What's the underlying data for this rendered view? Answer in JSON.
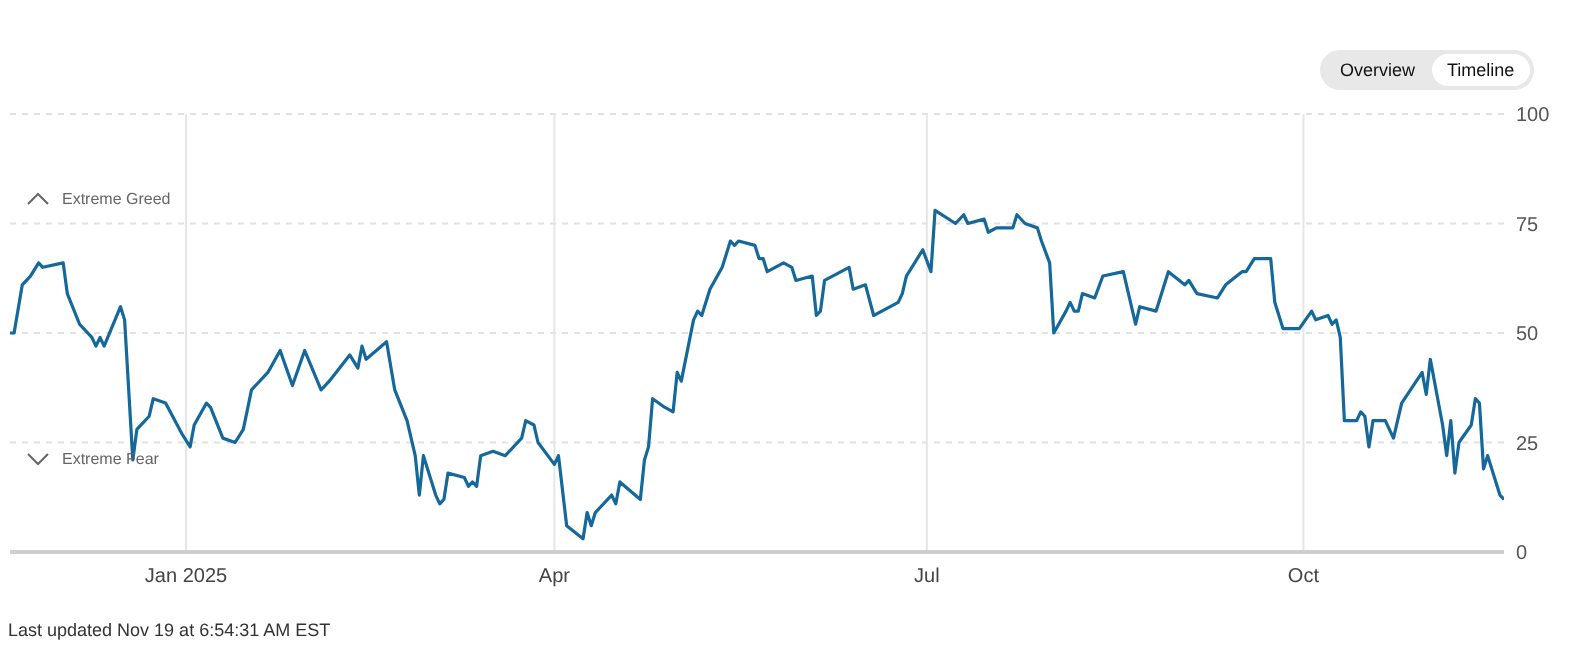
{
  "chart_data": {
    "type": "line",
    "x": [
      "2024-11-19",
      "2024-11-20",
      "2024-11-22",
      "2024-11-24",
      "2024-11-26",
      "2024-11-27",
      "2024-12-02",
      "2024-12-03",
      "2024-12-06",
      "2024-12-09",
      "2024-12-10",
      "2024-12-11",
      "2024-12-12",
      "2024-12-16",
      "2024-12-17",
      "2024-12-19",
      "2024-12-20",
      "2024-12-23",
      "2024-12-24",
      "2024-12-27",
      "2024-12-31",
      "2025-01-02",
      "2025-01-03",
      "2025-01-06",
      "2025-01-07",
      "2025-01-10",
      "2025-01-13",
      "2025-01-15",
      "2025-01-17",
      "2025-01-21",
      "2025-01-24",
      "2025-01-27",
      "2025-01-30",
      "2025-02-03",
      "2025-02-05",
      "2025-02-10",
      "2025-02-12",
      "2025-02-13",
      "2025-02-14",
      "2025-02-19",
      "2025-02-21",
      "2025-02-24",
      "2025-02-26",
      "2025-02-27",
      "2025-02-28",
      "2025-03-03",
      "2025-03-04",
      "2025-03-05",
      "2025-03-06",
      "2025-03-10",
      "2025-03-11",
      "2025-03-12",
      "2025-03-13",
      "2025-03-14",
      "2025-03-17",
      "2025-03-20",
      "2025-03-24",
      "2025-03-25",
      "2025-03-27",
      "2025-03-28",
      "2025-04-01",
      "2025-04-02",
      "2025-04-04",
      "2025-04-08",
      "2025-04-09",
      "2025-04-10",
      "2025-04-11",
      "2025-04-15",
      "2025-04-16",
      "2025-04-17",
      "2025-04-22",
      "2025-04-23",
      "2025-04-24",
      "2025-04-25",
      "2025-04-28",
      "2025-04-30",
      "2025-05-01",
      "2025-05-02",
      "2025-05-05",
      "2025-05-06",
      "2025-05-07",
      "2025-05-09",
      "2025-05-12",
      "2025-05-14",
      "2025-05-15",
      "2025-05-16",
      "2025-05-20",
      "2025-05-21",
      "2025-05-22",
      "2025-05-23",
      "2025-05-27",
      "2025-05-29",
      "2025-05-30",
      "2025-06-03",
      "2025-06-04",
      "2025-06-05",
      "2025-06-06",
      "2025-06-12",
      "2025-06-13",
      "2025-06-16",
      "2025-06-18",
      "2025-06-20",
      "2025-06-24",
      "2025-06-25",
      "2025-06-26",
      "2025-06-30",
      "2025-07-02",
      "2025-07-03",
      "2025-07-08",
      "2025-07-10",
      "2025-07-11",
      "2025-07-15",
      "2025-07-16",
      "2025-07-18",
      "2025-07-22",
      "2025-07-23",
      "2025-07-25",
      "2025-07-28",
      "2025-07-29",
      "2025-07-31",
      "2025-08-01",
      "2025-08-04",
      "2025-08-05",
      "2025-08-06",
      "2025-08-07",
      "2025-08-08",
      "2025-08-11",
      "2025-08-13",
      "2025-08-18",
      "2025-08-21",
      "2025-08-22",
      "2025-08-26",
      "2025-08-29",
      "2025-09-02",
      "2025-09-03",
      "2025-09-05",
      "2025-09-10",
      "2025-09-12",
      "2025-09-16",
      "2025-09-17",
      "2025-09-19",
      "2025-09-23",
      "2025-09-24",
      "2025-09-26",
      "2025-09-30",
      "2025-10-03",
      "2025-10-04",
      "2025-10-07",
      "2025-10-08",
      "2025-10-09",
      "2025-10-10",
      "2025-10-11",
      "2025-10-14",
      "2025-10-15",
      "2025-10-16",
      "2025-10-17",
      "2025-10-18",
      "2025-10-21",
      "2025-10-23",
      "2025-10-25",
      "2025-10-30",
      "2025-10-31",
      "2025-11-01",
      "2025-11-04",
      "2025-11-05",
      "2025-11-06",
      "2025-11-07",
      "2025-11-08",
      "2025-11-11",
      "2025-11-12",
      "2025-11-13",
      "2025-11-14",
      "2025-11-15",
      "2025-11-18",
      "2025-11-19"
    ],
    "series": [
      {
        "color": "#15689a",
        "values": [
          50,
          50,
          61,
          63,
          66,
          65,
          66,
          59,
          52,
          49,
          47,
          49,
          47,
          56,
          53,
          21,
          28,
          31,
          35,
          34,
          27,
          24,
          29,
          34,
          33,
          26,
          25,
          28,
          37,
          41,
          46,
          38,
          46,
          37,
          39,
          45,
          42,
          47,
          44,
          48,
          37,
          30,
          22,
          13,
          22,
          13,
          11,
          12,
          18,
          17,
          15,
          16,
          15,
          22,
          23,
          22,
          26,
          30,
          29,
          25,
          20,
          22,
          6,
          3,
          9,
          6,
          9,
          13,
          11,
          16,
          12,
          21,
          24,
          35,
          33,
          32,
          41,
          39,
          53,
          55,
          54,
          60,
          65,
          71,
          70,
          71,
          70,
          67,
          67,
          64,
          66,
          65,
          62,
          63,
          54,
          55,
          62,
          65,
          60,
          61,
          54,
          55,
          57,
          59,
          63,
          69,
          64,
          78,
          75,
          77,
          75,
          76,
          73,
          74,
          74,
          77,
          75,
          74,
          71,
          66,
          50,
          55,
          57,
          55,
          55,
          59,
          58,
          63,
          64,
          52,
          56,
          55,
          64,
          61,
          62,
          59,
          58,
          61,
          64,
          64,
          67,
          67,
          57,
          51,
          51,
          55,
          53,
          54,
          52,
          53,
          49,
          30,
          30,
          32,
          31,
          24,
          30,
          30,
          26,
          34,
          41,
          36,
          44,
          29,
          22,
          30,
          18,
          25,
          29,
          35,
          34,
          19,
          22,
          13,
          12
        ]
      }
    ],
    "xlim": [
      "2024-11-19",
      "2025-11-19"
    ],
    "xticks": [
      {
        "value": "2025-01-01",
        "label": "Jan 2025"
      },
      {
        "value": "2025-04-01",
        "label": "Apr"
      },
      {
        "value": "2025-07-01",
        "label": "Jul"
      },
      {
        "value": "2025-10-01",
        "label": "Oct"
      }
    ],
    "ylim": [
      0,
      100
    ],
    "yticks": [
      0,
      25,
      50,
      75,
      100
    ],
    "grid": true,
    "marker": "none",
    "line_style": "solid",
    "annotations": [
      "Extreme Greed",
      "Extreme Fear",
      "Overview",
      "Timeline",
      "Last updated Nov 19 at 6:54:31 AM EST"
    ]
  }
}
